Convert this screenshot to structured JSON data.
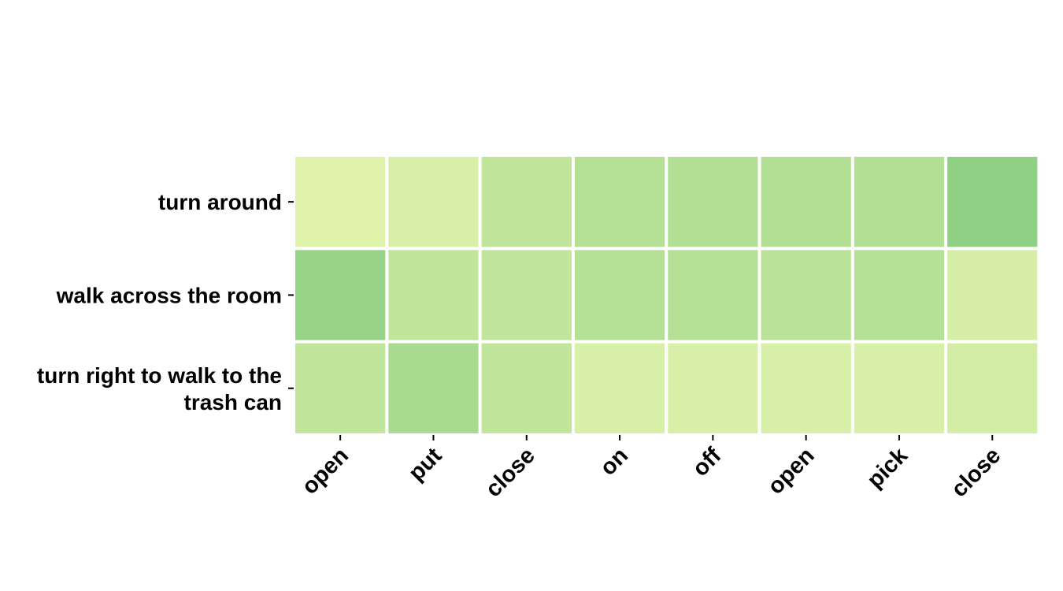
{
  "chart_data": {
    "type": "heatmap",
    "title": "",
    "xlabel": "",
    "ylabel": "",
    "x_categories": [
      "open",
      "put",
      "close",
      "on",
      "off",
      "open",
      "pick",
      "close"
    ],
    "y_categories": [
      [
        "turn around"
      ],
      [
        "walk across the room"
      ],
      [
        "turn right to walk to the",
        "trash can"
      ]
    ],
    "values": [
      [
        0.05,
        0.12,
        0.35,
        0.45,
        0.46,
        0.46,
        0.46,
        0.78
      ],
      [
        0.7,
        0.34,
        0.33,
        0.44,
        0.44,
        0.39,
        0.44,
        0.14
      ],
      [
        0.34,
        0.56,
        0.34,
        0.13,
        0.12,
        0.12,
        0.12,
        0.16
      ]
    ],
    "colormap": {
      "low": "#e5f5ad",
      "high": "#78c578"
    },
    "grid": false,
    "legend": "none"
  }
}
